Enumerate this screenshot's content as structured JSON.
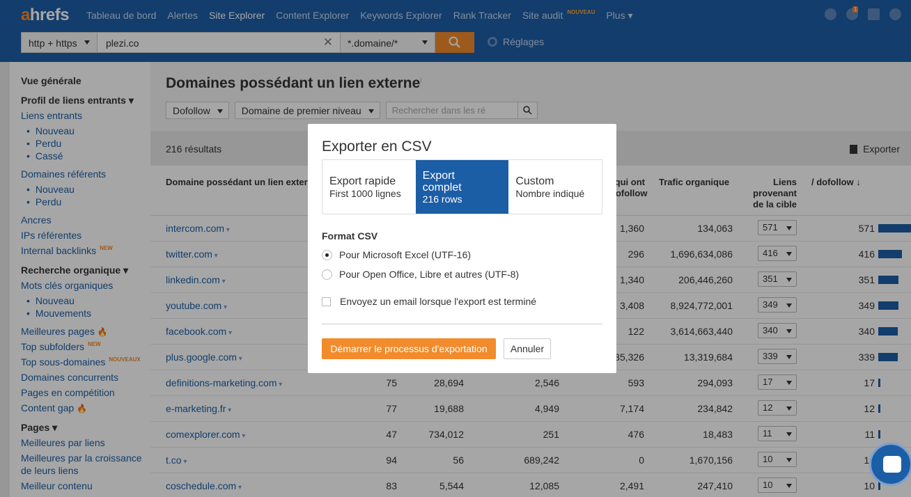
{
  "app": {
    "logo": "ahrefs"
  },
  "nav": [
    {
      "label": "Tableau de bord"
    },
    {
      "label": "Alertes"
    },
    {
      "label": "Site Explorer",
      "active": true
    },
    {
      "label": "Content Explorer"
    },
    {
      "label": "Keywords Explorer"
    },
    {
      "label": "Rank Tracker"
    },
    {
      "label": "Site audit",
      "badge": "NOUVEAU"
    },
    {
      "label": "Plus ▾"
    }
  ],
  "notifications": {
    "count": "1"
  },
  "search": {
    "protocol": "http + https",
    "url": "plezi.co",
    "mode": "*.domaine/*",
    "settings_label": "Réglages"
  },
  "sidebar": {
    "overview": "Vue générale",
    "backlink_profile": "Profil de liens entrants ▾",
    "backlinks": "Liens entrants",
    "bl_new": "Nouveau",
    "bl_lost": "Perdu",
    "bl_broken": "Cassé",
    "ref_domains": "Domaines référents",
    "rd_new": "Nouveau",
    "rd_lost": "Perdu",
    "anchors": "Ancres",
    "ref_ips": "IPs référentes",
    "internal_backlinks": "Internal backlinks",
    "new_badge": "NEW",
    "organic_search": "Recherche organique ▾",
    "organic_keywords": "Mots clés organiques",
    "ok_new": "Nouveau",
    "ok_moves": "Mouvements",
    "top_pages": "Meilleures pages",
    "top_subfolders": "Top subfolders",
    "top_subdomains": "Top sous-domaines",
    "nouveaux_badge": "NOUVEAUX",
    "competing_domains": "Domaines concurrents",
    "competing_pages": "Pages en compétition",
    "content_gap": "Content gap",
    "pages": "Pages ▾",
    "best_by_links": "Meilleures par liens",
    "best_by_growth": "Meilleures par la croissance",
    "best_by_growth2": "de leurs liens",
    "best_content": "Meilleur contenu"
  },
  "main": {
    "title": "Domaines possédant un lien externe",
    "title_sup": "i",
    "filter1": "Dofollow",
    "filter2": "Domaine de premier niveau",
    "search_placeholder": "Rechercher dans les ré",
    "results": "216 résultats",
    "export": "Exporter",
    "col_domain": "Domaine possédant un lien exter",
    "col_dofollow_a": "qui ont",
    "col_dofollow_b": "dofollow",
    "col_traffic": "Trafic organique",
    "col_links_a": "Liens",
    "col_links_b": "provenant",
    "col_links_c": "de la cible",
    "col_dof": "/ dofollow ↓"
  },
  "rows": [
    {
      "domain": "intercom.com",
      "c1": "",
      "c2": "",
      "c3": "",
      "c4": "1,360",
      "traffic": "134,063",
      "links": "571",
      "dofollow": "571",
      "bar": 1.0
    },
    {
      "domain": "twitter.com",
      "c1": "",
      "c2": "",
      "c3": "",
      "c4": "296",
      "traffic": "1,696,634,086",
      "links": "416",
      "dofollow": "416",
      "bar": 0.73
    },
    {
      "domain": "linkedin.com",
      "c1": "",
      "c2": "",
      "c3": "",
      "c4": "1,340",
      "traffic": "206,446,260",
      "links": "351",
      "dofollow": "351",
      "bar": 0.61
    },
    {
      "domain": "youtube.com",
      "c1": "",
      "c2": "",
      "c3": "",
      "c4": "3,408",
      "traffic": "8,924,772,001",
      "links": "349",
      "dofollow": "349",
      "bar": 0.61
    },
    {
      "domain": "facebook.com",
      "c1": "",
      "c2": "",
      "c3": "",
      "c4": "122",
      "traffic": "3,614,663,440",
      "links": "340",
      "dofollow": "340",
      "bar": 0.6
    },
    {
      "domain": "plus.google.com",
      "c1": "",
      "c2": "",
      "c3": "",
      "c4": "35,326",
      "traffic": "13,319,684",
      "links": "339",
      "dofollow": "339",
      "bar": 0.59
    },
    {
      "domain": "definitions-marketing.com",
      "c1": "75",
      "c2": "28,694",
      "c3": "2,546",
      "c4": "593",
      "traffic": "294,093",
      "links": "17",
      "dofollow": "17",
      "bar": 0.03
    },
    {
      "domain": "e-marketing.fr",
      "c1": "77",
      "c2": "19,688",
      "c3": "4,949",
      "c4": "7,174",
      "traffic": "234,842",
      "links": "12",
      "dofollow": "12",
      "bar": 0.02
    },
    {
      "domain": "comexplorer.com",
      "c1": "47",
      "c2": "734,012",
      "c3": "251",
      "c4": "476",
      "traffic": "18,483",
      "links": "11",
      "dofollow": "11",
      "bar": 0.02
    },
    {
      "domain": "t.co",
      "c1": "94",
      "c2": "56",
      "c3": "689,242",
      "c4": "0",
      "traffic": "1,670,156",
      "links": "10",
      "dofollow": "10",
      "bar": 0.02
    },
    {
      "domain": "coschedule.com",
      "c1": "83",
      "c2": "5,544",
      "c3": "12,085",
      "c4": "2,491",
      "traffic": "247,410",
      "links": "10",
      "dofollow": "10",
      "bar": 0.02
    }
  ],
  "modal": {
    "title": "Exporter en CSV",
    "tab1_a": "Export rapide",
    "tab1_b": "First 1000 lignes",
    "tab2_a": "Export",
    "tab2_b": "complet",
    "tab2_c": "216 rows",
    "tab3_a": "Custom",
    "tab3_b": "Nombre indiqué",
    "format_label": "Format CSV",
    "opt_excel": "Pour Microsoft Excel (UTF-16)",
    "opt_office": "Pour Open Office, Libre et autres (UTF-8)",
    "email_opt": "Envoyez un email lorsque l'export est terminé",
    "start": "Démarrer le processus d'exportation",
    "cancel": "Annuler"
  },
  "colors": {
    "brand": "#1c5ea6",
    "accent": "#f28b2b"
  }
}
